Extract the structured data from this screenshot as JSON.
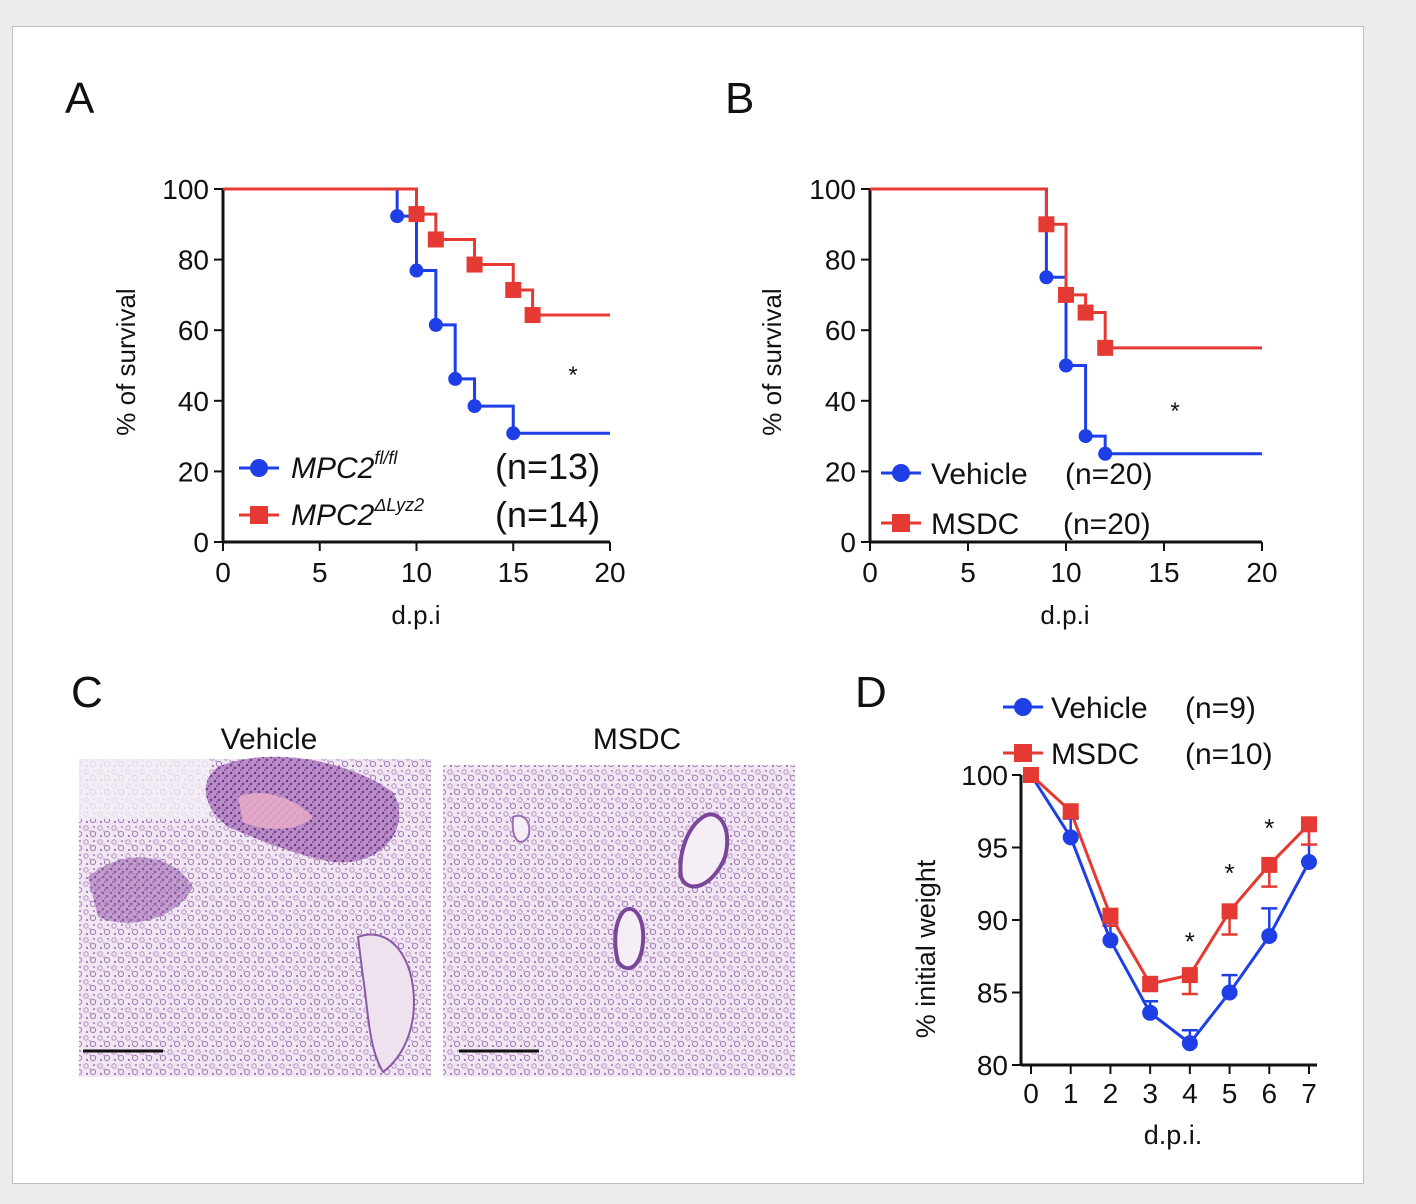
{
  "colors": {
    "blue": "#1f3fe6",
    "red": "#e53a33",
    "axis": "#111111"
  },
  "panels": {
    "A": {
      "letter": "A",
      "chart_data": {
        "type": "line",
        "subtype": "kaplan-meier",
        "xlabel": "d.p.i",
        "ylabel": "% of survival",
        "xlim": [
          0,
          20
        ],
        "ylim": [
          0,
          100
        ],
        "xticks": [
          0,
          5,
          10,
          15,
          20
        ],
        "yticks": [
          0,
          20,
          40,
          60,
          80,
          100
        ],
        "grid": false,
        "annotation": "*",
        "series": [
          {
            "name": "MPC2",
            "sup": "fl/fl",
            "n_label": "(n=13)",
            "color": "#1f3fe6",
            "marker": "circle",
            "steps": [
              [
                0,
                100
              ],
              [
                9,
                92.3
              ],
              [
                10,
                76.9
              ],
              [
                11,
                61.5
              ],
              [
                12,
                46.2
              ],
              [
                13,
                38.5
              ],
              [
                15,
                30.8
              ],
              [
                20,
                30.8
              ]
            ],
            "censored": [
              [
                9,
                92.3
              ],
              [
                10,
                76.9
              ],
              [
                11,
                61.5
              ],
              [
                12,
                46.2
              ],
              [
                13,
                38.5
              ],
              [
                15,
                30.8
              ]
            ]
          },
          {
            "name": "MPC2",
            "sup": "ΔLyz2",
            "n_label": "(n=14)",
            "color": "#e53a33",
            "marker": "square",
            "steps": [
              [
                0,
                100
              ],
              [
                10,
                92.9
              ],
              [
                11,
                85.7
              ],
              [
                13,
                78.6
              ],
              [
                15,
                71.4
              ],
              [
                16,
                64.3
              ],
              [
                20,
                64.3
              ]
            ],
            "censored": [
              [
                10,
                92.9
              ],
              [
                11,
                85.7
              ],
              [
                13,
                78.6
              ],
              [
                15,
                71.4
              ],
              [
                16,
                64.3
              ]
            ]
          }
        ]
      }
    },
    "B": {
      "letter": "B",
      "chart_data": {
        "type": "line",
        "subtype": "kaplan-meier",
        "xlabel": "d.p.i",
        "ylabel": "% of survival",
        "xlim": [
          0,
          20
        ],
        "ylim": [
          0,
          100
        ],
        "xticks": [
          0,
          5,
          10,
          15,
          20
        ],
        "yticks": [
          0,
          20,
          40,
          60,
          80,
          100
        ],
        "grid": false,
        "annotation": "*",
        "series": [
          {
            "name": "Vehicle",
            "n_label": "(n=20)",
            "color": "#1f3fe6",
            "marker": "circle",
            "steps": [
              [
                0,
                100
              ],
              [
                9,
                75
              ],
              [
                10,
                50
              ],
              [
                11,
                30
              ],
              [
                12,
                25
              ],
              [
                20,
                25
              ]
            ],
            "censored": [
              [
                9,
                75
              ],
              [
                10,
                50
              ],
              [
                11,
                30
              ],
              [
                12,
                25
              ]
            ]
          },
          {
            "name": "MSDC",
            "n_label": "(n=20)",
            "color": "#e53a33",
            "marker": "square",
            "steps": [
              [
                0,
                100
              ],
              [
                9,
                90
              ],
              [
                10,
                70
              ],
              [
                11,
                65
              ],
              [
                12,
                55
              ],
              [
                20,
                55
              ]
            ],
            "censored": [
              [
                9,
                90
              ],
              [
                10,
                70
              ],
              [
                11,
                65
              ],
              [
                12,
                55
              ]
            ]
          }
        ]
      }
    },
    "C": {
      "letter": "C",
      "images": [
        {
          "label": "Vehicle"
        },
        {
          "label": "MSDC"
        }
      ]
    },
    "D": {
      "letter": "D",
      "chart_data": {
        "type": "line",
        "xlabel": "d.p.i.",
        "ylabel": "% initial weight",
        "x": [
          0,
          1,
          2,
          3,
          4,
          5,
          6,
          7
        ],
        "xlim": [
          0,
          7
        ],
        "ylim": [
          80,
          100
        ],
        "yticks": [
          80,
          85,
          90,
          95,
          100
        ],
        "grid": false,
        "significant_days": [
          4,
          5,
          6
        ],
        "series": [
          {
            "name": "Vehicle",
            "n_label": "(n=9)",
            "color": "#1f3fe6",
            "marker": "circle",
            "values": [
              100,
              95.7,
              88.6,
              83.6,
              81.5,
              85.0,
              88.9,
              94.0
            ],
            "err": [
              0,
              1.3,
              1.2,
              0.8,
              0.9,
              1.2,
              1.9,
              2.3
            ]
          },
          {
            "name": "MSDC",
            "n_label": "(n=10)",
            "color": "#e53a33",
            "marker": "square",
            "values": [
              100,
              97.5,
              90.3,
              85.6,
              86.2,
              90.6,
              93.8,
              96.6
            ],
            "err": [
              0,
              0.4,
              0.7,
              0.5,
              1.3,
              1.6,
              1.5,
              1.4
            ]
          }
        ]
      }
    }
  }
}
